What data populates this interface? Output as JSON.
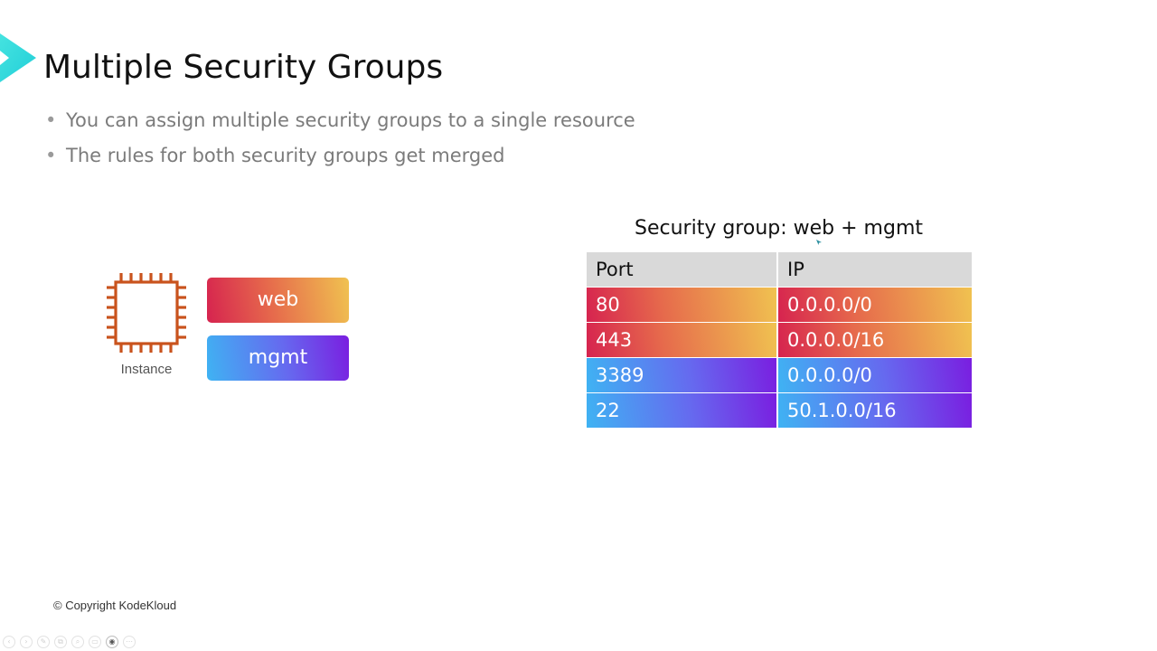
{
  "slide": {
    "title": "Multiple Security Groups",
    "bullets": [
      "You can assign multiple security groups to a single resource",
      "The rules for both security groups get merged"
    ],
    "bullet_glyph": "•"
  },
  "diagram": {
    "instance_icon": "cpu-chip-icon",
    "instance_label": "Instance",
    "groups": [
      {
        "label": "web",
        "colors": [
          "#d6234f",
          "#f0c250"
        ]
      },
      {
        "label": "mgmt",
        "colors": [
          "#3fb3f3",
          "#7a1ee0"
        ]
      }
    ],
    "icon_color": "#c9531d"
  },
  "table": {
    "caption": "Security group: web + mgmt",
    "headers": [
      "Port",
      "IP"
    ],
    "rows": [
      {
        "port": "80",
        "ip": "0.0.0.0/0",
        "group": "web"
      },
      {
        "port": "443",
        "ip": "0.0.0.0/16",
        "group": "web"
      },
      {
        "port": "3389",
        "ip": "0.0.0.0/0",
        "group": "mgmt"
      },
      {
        "port": "22",
        "ip": "50.1.0.0/16",
        "group": "mgmt"
      }
    ],
    "header_color": "#d9d9d9"
  },
  "footer": {
    "copyright": "© Copyright KodeKloud"
  },
  "presenter_toolbar": {
    "icons": [
      "previous-icon",
      "next-icon",
      "pen-icon",
      "copy-icon",
      "zoom-icon",
      "subtitles-icon",
      "camera-icon",
      "more-icon"
    ],
    "glyphs": [
      "‹",
      "›",
      "✎",
      "⧉",
      "⌕",
      "▭",
      "◉",
      "⋯"
    ]
  },
  "colors": {
    "accent_cyan": "#2be0d8",
    "title": "#111111",
    "bullet_text": "#7b7b7b"
  }
}
